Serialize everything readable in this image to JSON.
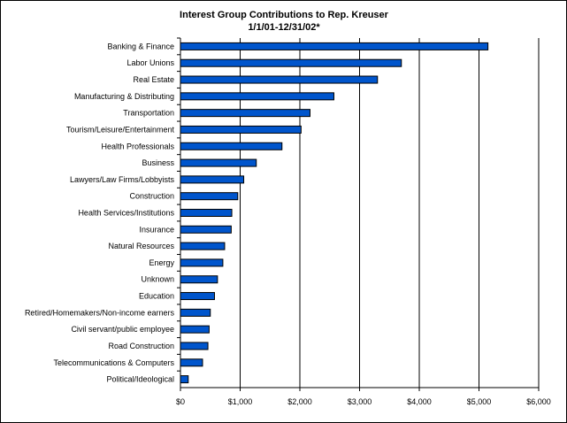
{
  "chart_data": {
    "type": "bar",
    "orientation": "horizontal",
    "title": "Interest Group Contributions to Rep. Kreuser",
    "subtitle": "1/1/01-12/31/02*",
    "xlabel": "",
    "ylabel": "",
    "xlim": [
      0,
      6000
    ],
    "x_ticks": [
      0,
      1000,
      2000,
      3000,
      4000,
      5000,
      6000
    ],
    "x_tick_labels": [
      "$0",
      "$1,000",
      "$2,000",
      "$3,000",
      "$4,000",
      "$5,000",
      "$6,000"
    ],
    "grid": true,
    "legend": "none",
    "bar_color": "#0055CC",
    "categories": [
      "Banking & Finance",
      "Labor Unions",
      "Real Estate",
      "Manufacturing & Distributing",
      "Transportation",
      "Tourism/Leisure/Entertainment",
      "Health Professionals",
      "Business",
      "Lawyers/Law Firms/Lobbyists",
      "Construction",
      "Health Services/Institutions",
      "Insurance",
      "Natural Resources",
      "Energy",
      "Unknown",
      "Education",
      "Retired/Homemakers/Non-income earners",
      "Civil servant/public employee",
      "Road Construction",
      "Telecommunications & Computers",
      "Political/Ideological"
    ],
    "values": [
      5150,
      3700,
      3300,
      2570,
      2170,
      2020,
      1700,
      1270,
      1060,
      960,
      860,
      850,
      740,
      710,
      620,
      570,
      500,
      480,
      460,
      370,
      130
    ]
  }
}
